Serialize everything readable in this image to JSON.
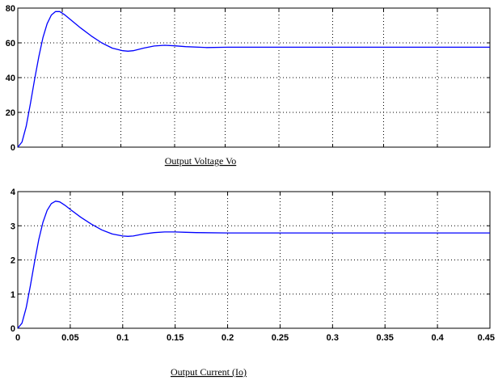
{
  "chart_data": [
    {
      "type": "line",
      "title": "",
      "caption": "Output Voltage Vo",
      "xlabel": "",
      "ylabel": "",
      "xlim": [
        0,
        0.45
      ],
      "ylim": [
        0,
        80
      ],
      "grid": true,
      "x_ticks": [],
      "y_ticks": [
        0,
        20,
        40,
        60,
        80
      ],
      "y_tick_labels": [
        "0",
        "20",
        "40",
        "60",
        "80"
      ],
      "line_color": "#0000ff",
      "series": [
        {
          "x": [
            0,
            0.004,
            0.008,
            0.012,
            0.016,
            0.02,
            0.024,
            0.028,
            0.032,
            0.036,
            0.04,
            0.045,
            0.05,
            0.06,
            0.07,
            0.08,
            0.09,
            0.1,
            0.105,
            0.11,
            0.12,
            0.13,
            0.14,
            0.15,
            0.16,
            0.18,
            0.2,
            0.25,
            0.3,
            0.35,
            0.4,
            0.45
          ],
          "y": [
            0,
            3,
            12,
            25,
            39,
            52,
            63,
            71,
            76,
            78,
            78,
            76,
            73.5,
            68.5,
            64,
            60,
            57,
            55.5,
            55.2,
            55.5,
            57,
            58.2,
            58.6,
            58.3,
            57.8,
            57.3,
            57.5,
            57.5,
            57.5,
            57.5,
            57.5,
            57.5
          ]
        }
      ]
    },
    {
      "type": "line",
      "title": "",
      "caption": "Output Current (Io)",
      "xlabel": "",
      "ylabel": "",
      "xlim": [
        0,
        0.45
      ],
      "ylim": [
        0,
        4
      ],
      "grid": true,
      "x_ticks": [
        0,
        0.05,
        0.1,
        0.15,
        0.2,
        0.25,
        0.3,
        0.35,
        0.4,
        0.45
      ],
      "x_tick_labels": [
        "0",
        "0.05",
        "0.1",
        "0.15",
        "0.2",
        "0.25",
        "0.3",
        "0.35",
        "0.4",
        "0.45"
      ],
      "y_ticks": [
        0,
        1,
        2,
        3,
        4
      ],
      "y_tick_labels": [
        "0",
        "1",
        "2",
        "3",
        "4"
      ],
      "line_color": "#0000ff",
      "series": [
        {
          "x": [
            0,
            0.004,
            0.008,
            0.012,
            0.016,
            0.02,
            0.024,
            0.028,
            0.032,
            0.036,
            0.04,
            0.045,
            0.05,
            0.06,
            0.07,
            0.08,
            0.09,
            0.1,
            0.105,
            0.11,
            0.12,
            0.13,
            0.14,
            0.15,
            0.16,
            0.17,
            0.2,
            0.25,
            0.3,
            0.35,
            0.4,
            0.45
          ],
          "y": [
            0,
            0.15,
            0.6,
            1.25,
            1.95,
            2.6,
            3.1,
            3.45,
            3.65,
            3.72,
            3.7,
            3.6,
            3.48,
            3.25,
            3.05,
            2.88,
            2.76,
            2.7,
            2.69,
            2.7,
            2.76,
            2.8,
            2.82,
            2.82,
            2.81,
            2.8,
            2.79,
            2.79,
            2.79,
            2.79,
            2.79,
            2.79
          ]
        }
      ]
    }
  ]
}
